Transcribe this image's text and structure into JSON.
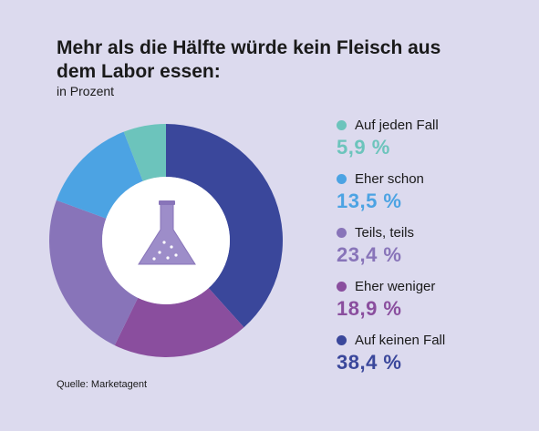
{
  "title": "Mehr als die Hälfte würde kein Fleisch aus dem Labor essen:",
  "subtitle": "in Prozent",
  "source": "Quelle: Marketagent",
  "icon": "lab-flask-icon",
  "legend_labels": [
    "Auf jeden Fall",
    "Eher schon",
    "Teils, teils",
    "Eher weniger",
    "Auf keinen Fall"
  ],
  "legend_values": [
    "5,9 %",
    "13,5 %",
    "23,4 %",
    "18,9 %",
    "38,4 %"
  ],
  "chart_data": {
    "type": "pie",
    "title": "Mehr als die Hälfte würde kein Fleisch aus dem Labor essen:",
    "subtitle": "in Prozent",
    "categories": [
      "Auf jeden Fall",
      "Eher schon",
      "Teils, teils",
      "Eher weniger",
      "Auf keinen Fall"
    ],
    "values": [
      5.9,
      13.5,
      23.4,
      18.9,
      38.4
    ],
    "unit": "%",
    "colors": [
      "#6cc4bc",
      "#4ca3e3",
      "#8874b9",
      "#8a4e9e",
      "#3a479b"
    ],
    "legend": "right"
  }
}
